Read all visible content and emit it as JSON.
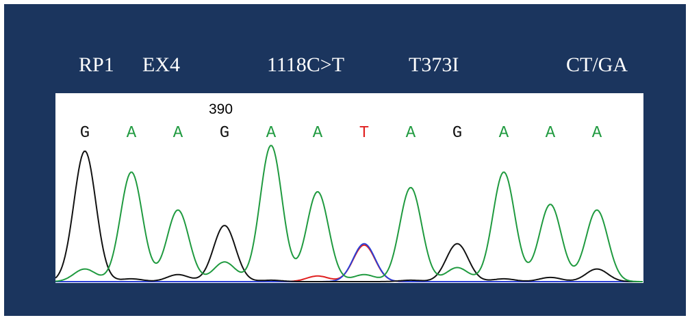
{
  "header": {
    "gene": "RP1",
    "exon": "EX4",
    "cdna_change": "1118C>T",
    "protein_change": "T373I",
    "genotype": "CT/GA"
  },
  "chromatogram": {
    "position_label": "390",
    "colors": {
      "A": "#1f9a3f",
      "C": "#2b3fd6",
      "G": "#111111",
      "T": "#e02020"
    },
    "bases": [
      {
        "base": "G",
        "letter_color": "#111111",
        "peaks": {
          "G": 0.93,
          "A": 0.09
        }
      },
      {
        "base": "A",
        "letter_color": "#1f9a3f",
        "peaks": {
          "A": 0.78,
          "G": 0.02
        }
      },
      {
        "base": "A",
        "letter_color": "#1f9a3f",
        "peaks": {
          "A": 0.51,
          "G": 0.05
        }
      },
      {
        "base": "G",
        "letter_color": "#111111",
        "peaks": {
          "G": 0.4,
          "A": 0.14
        }
      },
      {
        "base": "A",
        "letter_color": "#1f9a3f",
        "peaks": {
          "A": 0.97,
          "G": 0.01
        }
      },
      {
        "base": "A",
        "letter_color": "#1f9a3f",
        "peaks": {
          "A": 0.64,
          "T": 0.04
        }
      },
      {
        "base": "T",
        "letter_color": "#e02020",
        "peaks": {
          "T": 0.26,
          "C": 0.27,
          "A": 0.05
        }
      },
      {
        "base": "A",
        "letter_color": "#1f9a3f",
        "peaks": {
          "A": 0.67,
          "G": 0.01
        }
      },
      {
        "base": "G",
        "letter_color": "#111111",
        "peaks": {
          "G": 0.27,
          "A": 0.1
        }
      },
      {
        "base": "A",
        "letter_color": "#1f9a3f",
        "peaks": {
          "A": 0.78,
          "G": 0.02
        }
      },
      {
        "base": "A",
        "letter_color": "#1f9a3f",
        "peaks": {
          "A": 0.55,
          "G": 0.03
        }
      },
      {
        "base": "A",
        "letter_color": "#1f9a3f",
        "peaks": {
          "A": 0.51,
          "G": 0.09
        }
      }
    ]
  }
}
